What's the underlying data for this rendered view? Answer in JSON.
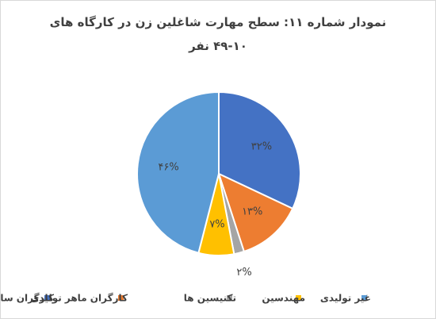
{
  "chart_data": {
    "type": "pie",
    "title": "نمودار شماره ۱۱: سطح مهارت شاغلین زن در کارگاه های ۱۰-۴۹ نفر",
    "categories": [
      "کارگران ساده",
      "کارگران ماهر تولیدی",
      "تکنیسین ها",
      "مهندسین",
      "غیر تولیدی"
    ],
    "values": [
      32,
      13,
      2,
      7,
      46
    ],
    "value_labels": [
      "۳۲%",
      "۱۳%",
      "۲%",
      "۷%",
      "۴۶%"
    ],
    "colors": [
      "#4472c4",
      "#ed7d31",
      "#a5a5a5",
      "#ffc000",
      "#5b9bd5"
    ]
  }
}
